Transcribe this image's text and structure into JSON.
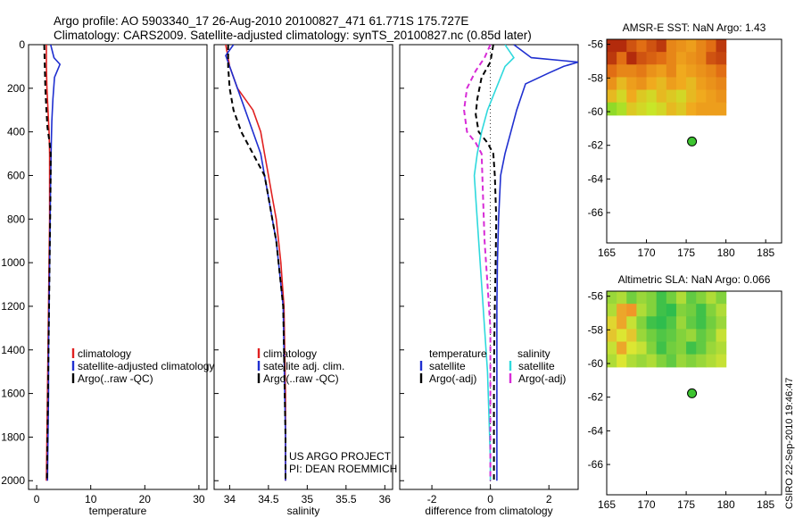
{
  "header": {
    "line1": "Argo profile: AO 5903340_17 26-Aug-2010 20100827_471 61.771S 175.727E",
    "line2": "Climatology: CARS2009. Satellite-adjusted climatology: synTS_20100827.nc (0.85d later)"
  },
  "stamp": "CSIRO 22-Sep-2010 19:46:47",
  "colors": {
    "climatology": "#e02020",
    "satellite": "#1f2fd0",
    "argo": "#000000",
    "salinity_satellite": "#2fd9dd",
    "salinity_argo": "#d72bd7",
    "float_marker": "#3dc430"
  },
  "chart_data": [
    {
      "id": "temperature",
      "type": "line",
      "xlabel": "temperature",
      "xlim": [
        -1.5,
        31.5
      ],
      "xticks": [
        0,
        10,
        20,
        30
      ],
      "ylim": [
        2040,
        0
      ],
      "yticks": [
        0,
        200,
        400,
        600,
        800,
        1000,
        1200,
        1400,
        1600,
        1800,
        2000
      ],
      "legend": {
        "placement": "lower-right",
        "entries": [
          "climatology",
          "satellite-adjusted climatology",
          "Argo(..raw -QC)"
        ]
      },
      "series": [
        {
          "name": "climatology",
          "color": "#e02020",
          "style": "solid",
          "points": [
            [
              1.8,
              0
            ],
            [
              1.8,
              100
            ],
            [
              1.9,
              200
            ],
            [
              2.1,
              300
            ],
            [
              2.3,
              400
            ],
            [
              2.4,
              500
            ],
            [
              2.4,
              600
            ],
            [
              2.4,
              800
            ],
            [
              2.3,
              1000
            ],
            [
              2.2,
              1200
            ],
            [
              2.1,
              1400
            ],
            [
              2.0,
              1600
            ],
            [
              1.9,
              1800
            ],
            [
              1.8,
              2000
            ]
          ]
        },
        {
          "name": "satellite-adjusted climatology",
          "color": "#1f2fd0",
          "style": "solid",
          "points": [
            [
              2.6,
              0
            ],
            [
              3.2,
              60
            ],
            [
              4.3,
              90
            ],
            [
              3.3,
              150
            ],
            [
              3.0,
              250
            ],
            [
              2.8,
              350
            ],
            [
              2.7,
              450
            ],
            [
              2.6,
              600
            ],
            [
              2.5,
              800
            ],
            [
              2.4,
              1000
            ],
            [
              2.3,
              1200
            ],
            [
              2.2,
              1400
            ],
            [
              2.2,
              1600
            ],
            [
              2.1,
              1800
            ],
            [
              2.0,
              2000
            ]
          ]
        },
        {
          "name": "Argo(..raw -QC)",
          "color": "#000000",
          "style": "dashed",
          "points": [
            [
              1.4,
              0
            ],
            [
              1.5,
              100
            ],
            [
              1.6,
              200
            ],
            [
              1.8,
              300
            ],
            [
              2.0,
              380
            ],
            [
              2.4,
              450
            ],
            [
              2.6,
              500
            ],
            [
              2.6,
              600
            ],
            [
              2.5,
              800
            ],
            [
              2.4,
              1000
            ],
            [
              2.3,
              1200
            ],
            [
              2.2,
              1400
            ],
            [
              2.1,
              1600
            ],
            [
              2.0,
              1800
            ],
            [
              1.9,
              2000
            ]
          ]
        }
      ]
    },
    {
      "id": "salinity",
      "type": "line",
      "xlabel": "salinity",
      "xlim": [
        33.8,
        36.1
      ],
      "xticks": [
        34,
        34.5,
        35,
        35.5,
        36
      ],
      "ylim": [
        2040,
        0
      ],
      "yticks": [
        0,
        200,
        400,
        600,
        800,
        1000,
        1200,
        1400,
        1600,
        1800,
        2000
      ],
      "legend": {
        "placement": "lower-right",
        "entries": [
          "climatology",
          "satellite adj. clim.",
          "Argo(..raw -QC)"
        ]
      },
      "annotations": [
        "US ARGO PROJECT",
        "PI: DEAN ROEMMICH"
      ],
      "series": [
        {
          "name": "climatology",
          "color": "#e02020",
          "style": "solid",
          "points": [
            [
              33.95,
              0
            ],
            [
              34.0,
              100
            ],
            [
              34.1,
              200
            ],
            [
              34.3,
              300
            ],
            [
              34.4,
              400
            ],
            [
              34.45,
              500
            ],
            [
              34.5,
              600
            ],
            [
              34.55,
              700
            ],
            [
              34.6,
              800
            ],
            [
              34.63,
              900
            ],
            [
              34.66,
              1000
            ],
            [
              34.68,
              1100
            ],
            [
              34.7,
              1200
            ],
            [
              34.71,
              1400
            ],
            [
              34.72,
              1600
            ],
            [
              34.72,
              1800
            ],
            [
              34.72,
              2000
            ]
          ]
        },
        {
          "name": "satellite adj. clim.",
          "color": "#1f2fd0",
          "style": "solid",
          "points": [
            [
              34.05,
              0
            ],
            [
              33.95,
              50
            ],
            [
              34.0,
              100
            ],
            [
              34.1,
              200
            ],
            [
              34.2,
              300
            ],
            [
              34.3,
              400
            ],
            [
              34.4,
              500
            ],
            [
              34.45,
              600
            ],
            [
              34.5,
              700
            ],
            [
              34.55,
              800
            ],
            [
              34.6,
              900
            ],
            [
              34.63,
              1000
            ],
            [
              34.66,
              1100
            ],
            [
              34.69,
              1200
            ],
            [
              34.7,
              1400
            ],
            [
              34.71,
              1600
            ],
            [
              34.72,
              1800
            ],
            [
              34.72,
              2000
            ]
          ]
        },
        {
          "name": "Argo(..raw -QC)",
          "color": "#000000",
          "style": "dashed",
          "points": [
            [
              33.98,
              0
            ],
            [
              33.98,
              100
            ],
            [
              34.0,
              200
            ],
            [
              34.05,
              300
            ],
            [
              34.15,
              400
            ],
            [
              34.3,
              500
            ],
            [
              34.45,
              600
            ],
            [
              34.5,
              700
            ],
            [
              34.55,
              800
            ],
            [
              34.6,
              900
            ],
            [
              34.63,
              1000
            ],
            [
              34.66,
              1100
            ],
            [
              34.69,
              1200
            ],
            [
              34.7,
              1400
            ],
            [
              34.71,
              1600
            ],
            [
              34.72,
              1800
            ],
            [
              34.72,
              2000
            ]
          ]
        }
      ]
    },
    {
      "id": "difference",
      "type": "line",
      "xlabel": "difference from climatology",
      "xlim": [
        -3.1,
        3.0
      ],
      "xticks": [
        -2,
        0,
        2
      ],
      "ylim": [
        2040,
        0
      ],
      "yticks": [
        0,
        200,
        400,
        600,
        800,
        1000,
        1200,
        1400,
        1600,
        1800,
        2000
      ],
      "legend": {
        "placement": "lower-right",
        "groups": [
          {
            "heading": "temperature",
            "entries": [
              "satellite",
              "Argo(-adj)"
            ]
          },
          {
            "heading": "salinity",
            "entries": [
              "satellite",
              "Argo(-adj)"
            ]
          }
        ]
      },
      "series": [
        {
          "name": "temperature satellite",
          "color": "#1f2fd0",
          "style": "solid",
          "points": [
            [
              0.8,
              0
            ],
            [
              1.4,
              60
            ],
            [
              3.0,
              80
            ],
            [
              2.5,
              100
            ],
            [
              2.0,
              130
            ],
            [
              1.2,
              180
            ],
            [
              0.9,
              300
            ],
            [
              0.7,
              400
            ],
            [
              0.5,
              500
            ],
            [
              0.35,
              600
            ],
            [
              0.28,
              800
            ],
            [
              0.24,
              1000
            ],
            [
              0.22,
              1200
            ],
            [
              0.22,
              1400
            ],
            [
              0.22,
              1600
            ],
            [
              0.22,
              1800
            ],
            [
              0.22,
              2000
            ]
          ]
        },
        {
          "name": "temperature Argo(-adj)",
          "color": "#000000",
          "style": "dashed",
          "points": [
            [
              0.1,
              0
            ],
            [
              0.0,
              80
            ],
            [
              -0.3,
              150
            ],
            [
              -0.45,
              250
            ],
            [
              -0.5,
              320
            ],
            [
              -0.4,
              400
            ],
            [
              -0.1,
              450
            ],
            [
              0.1,
              500
            ],
            [
              0.15,
              600
            ],
            [
              0.2,
              800
            ],
            [
              0.18,
              1000
            ],
            [
              0.15,
              1200
            ],
            [
              0.13,
              1400
            ],
            [
              0.12,
              1600
            ],
            [
              0.12,
              1800
            ],
            [
              0.12,
              2000
            ]
          ]
        },
        {
          "name": "salinity satellite",
          "color": "#2fd9dd",
          "style": "solid",
          "points": [
            [
              0.5,
              0
            ],
            [
              0.8,
              60
            ],
            [
              0.5,
              100
            ],
            [
              0.2,
              200
            ],
            [
              -0.1,
              300
            ],
            [
              -0.3,
              400
            ],
            [
              -0.45,
              500
            ],
            [
              -0.55,
              600
            ],
            [
              -0.5,
              700
            ],
            [
              -0.4,
              900
            ],
            [
              -0.3,
              1100
            ],
            [
              -0.2,
              1300
            ],
            [
              -0.1,
              1500
            ],
            [
              -0.05,
              1700
            ],
            [
              0.0,
              1900
            ],
            [
              0.0,
              2000
            ]
          ]
        },
        {
          "name": "salinity Argo(-adj)",
          "color": "#d72bd7",
          "style": "dashed",
          "points": [
            [
              0.0,
              0
            ],
            [
              -0.2,
              60
            ],
            [
              -0.5,
              120
            ],
            [
              -0.8,
              200
            ],
            [
              -0.9,
              300
            ],
            [
              -0.8,
              400
            ],
            [
              -0.5,
              450
            ],
            [
              -0.3,
              500
            ],
            [
              -0.25,
              700
            ],
            [
              -0.2,
              900
            ],
            [
              -0.1,
              1100
            ],
            [
              0.0,
              1300
            ],
            [
              0.0,
              2000
            ]
          ]
        }
      ]
    },
    {
      "id": "sst-map",
      "type": "heatmap",
      "title": "AMSR-E SST: NaN Argo: 1.43",
      "xlim": [
        165,
        187
      ],
      "xticks": [
        165,
        170,
        175,
        180,
        185
      ],
      "ylim": [
        -67.8,
        -55.7
      ],
      "yticks": [
        -56,
        -58,
        -60,
        -62,
        -64,
        -66
      ],
      "grid_extent": {
        "lon": [
          165,
          180
        ],
        "lat": [
          -60.2,
          -55.7
        ]
      },
      "grid": [
        [
          0.95,
          0.95,
          0.8,
          0.7,
          0.8,
          0.9,
          0.6,
          0.55,
          0.5,
          0.6,
          0.7,
          0.9
        ],
        [
          0.9,
          0.7,
          0.95,
          0.8,
          0.75,
          0.7,
          0.6,
          0.5,
          0.55,
          0.6,
          0.8,
          0.85
        ],
        [
          0.7,
          0.6,
          0.6,
          0.65,
          0.55,
          0.5,
          0.6,
          0.45,
          0.5,
          0.55,
          0.6,
          0.7
        ],
        [
          0.55,
          0.4,
          0.5,
          0.55,
          0.45,
          0.4,
          0.5,
          0.45,
          0.4,
          0.5,
          0.55,
          0.6
        ],
        [
          0.4,
          0.3,
          0.45,
          0.35,
          0.3,
          0.4,
          0.35,
          0.3,
          0.4,
          0.45,
          0.5,
          0.55
        ],
        [
          0.15,
          0.2,
          0.35,
          0.3,
          0.25,
          0.3,
          0.4,
          0.35,
          0.45,
          0.5,
          0.5,
          0.5
        ]
      ],
      "float_position": {
        "lon": 175.727,
        "lat": -61.771
      }
    },
    {
      "id": "sla-map",
      "type": "heatmap",
      "title": "Altimetric SLA: NaN Argo: 0.066",
      "xlim": [
        165,
        187
      ],
      "xticks": [
        165,
        170,
        175,
        180,
        185
      ],
      "ylim": [
        -67.8,
        -55.7
      ],
      "yticks": [
        -56,
        -58,
        -60,
        -62,
        -64,
        -66
      ],
      "grid_extent": {
        "lon": [
          165,
          180
        ],
        "lat": [
          -60.2,
          -55.7
        ]
      },
      "grid": [
        [
          0.35,
          0.4,
          0.25,
          0.35,
          0.3,
          0.1,
          0.25,
          0.4,
          0.2,
          0.3,
          0.4,
          0.3
        ],
        [
          0.4,
          0.7,
          0.75,
          0.4,
          0.3,
          0.1,
          0.05,
          0.3,
          0.25,
          0.1,
          0.3,
          0.4
        ],
        [
          0.55,
          0.7,
          0.45,
          0.3,
          0.1,
          0.05,
          0.15,
          0.35,
          0.2,
          0.1,
          0.25,
          0.35
        ],
        [
          0.6,
          0.5,
          0.6,
          0.35,
          0.25,
          0.15,
          0.2,
          0.3,
          0.35,
          0.2,
          0.3,
          0.45
        ],
        [
          0.45,
          0.7,
          0.5,
          0.45,
          0.3,
          0.1,
          0.25,
          0.3,
          0.1,
          0.2,
          0.35,
          0.4
        ],
        [
          0.4,
          0.5,
          0.4,
          0.35,
          0.4,
          0.3,
          0.2,
          0.35,
          0.3,
          0.35,
          0.4,
          0.45
        ]
      ],
      "float_position": {
        "lon": 175.727,
        "lat": -61.771
      }
    }
  ]
}
